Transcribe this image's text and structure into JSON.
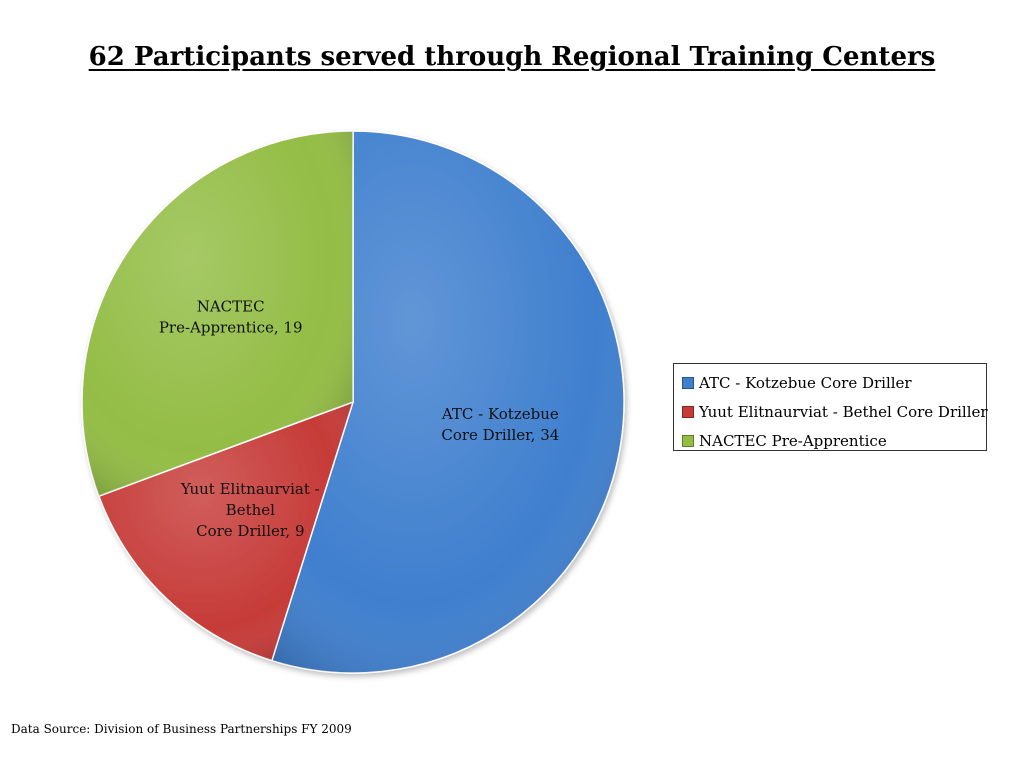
{
  "chart_data": {
    "type": "pie",
    "title": "62 Participants served through Regional Training Centers",
    "slices": [
      {
        "name": "ATC - Kotzebue Core Driller",
        "value": 34,
        "label_lines": [
          "ATC - Kotzebue",
          "Core Driller, 34"
        ],
        "color": "#3f7fce"
      },
      {
        "name": "Yuut Elitnaurviat - Bethel Core Driller",
        "value": 9,
        "label_lines": [
          "Yuut Elitnaurviat  -",
          "Bethel",
          "Core Driller, 9"
        ],
        "color": "#c63b38"
      },
      {
        "name": "NACTEC  Pre-Apprentice",
        "value": 19,
        "label_lines": [
          "NACTEC",
          "Pre-Apprentice, 19"
        ],
        "color": "#93bd45"
      }
    ],
    "legend_position": "right"
  },
  "footer": {
    "source": "Data Source: Division of Business Partnerships FY 2009"
  }
}
